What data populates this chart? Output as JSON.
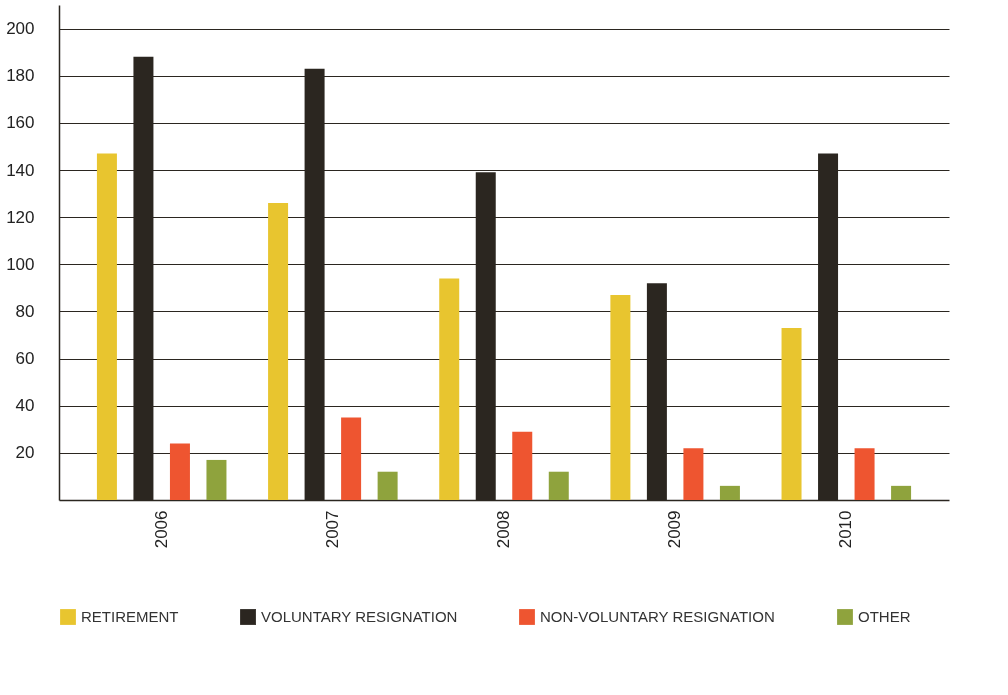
{
  "chart_data": {
    "type": "bar",
    "categories": [
      "2006",
      "2007",
      "2008",
      "2009",
      "2010"
    ],
    "series": [
      {
        "name": "RETIREMENT",
        "color": "#e8c52f",
        "values": [
          147,
          126,
          94,
          87,
          73
        ]
      },
      {
        "name": "VOLUNTARY RESIGNATION",
        "color": "#2b2620",
        "values": [
          188,
          183,
          139,
          92,
          147
        ]
      },
      {
        "name": "NON-VOLUNTARY RESIGNATION",
        "color": "#ee5530",
        "values": [
          24,
          35,
          29,
          22,
          22
        ]
      },
      {
        "name": "OTHER",
        "color": "#8fa33d",
        "values": [
          17,
          12,
          12,
          6,
          6
        ]
      }
    ],
    "ylim": [
      0,
      210
    ],
    "yticks": [
      20,
      40,
      60,
      80,
      100,
      120,
      140,
      160,
      180,
      200
    ],
    "grid": "y",
    "legend": "bottom"
  }
}
